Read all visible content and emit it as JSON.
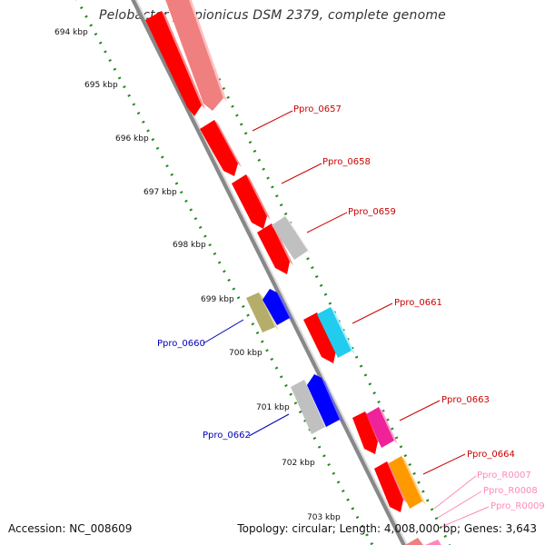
{
  "title": "Pelobacter propionicus DSM 2379, complete genome",
  "accession_text": "Accession: NC_008609",
  "summary_text": "Topology: circular; Length: 4,008,000 bp; Genes: 3,643",
  "ruler_labels": [
    "694 kbp",
    "695 kbp",
    "696 kbp",
    "697 kbp",
    "698 kbp",
    "699 kbp",
    "700 kbp",
    "701 kbp",
    "702 kbp",
    "703 kbp"
  ],
  "gene_labels": [
    {
      "text": "Ppro_0657",
      "color": "#cc0000"
    },
    {
      "text": "Ppro_0658",
      "color": "#cc0000"
    },
    {
      "text": "Ppro_0659",
      "color": "#cc0000"
    },
    {
      "text": "Ppro_0660",
      "color": "#0000bb"
    },
    {
      "text": "Ppro_0661",
      "color": "#cc0000"
    },
    {
      "text": "Ppro_0662",
      "color": "#0000bb"
    },
    {
      "text": "Ppro_0663",
      "color": "#cc0000"
    },
    {
      "text": "Ppro_0664",
      "color": "#cc0000"
    },
    {
      "text": "Ppro_R0007",
      "color": "#ff88bb"
    },
    {
      "text": "Ppro_R0008",
      "color": "#ff88bb"
    },
    {
      "text": "Ppro_R0009",
      "color": "#ff88bb"
    }
  ],
  "colors": {
    "forward_cds": "#ff0000",
    "reverse_cds": "#0000ff",
    "pale_feature": "#f08080",
    "gray_feature": "#c0c0c0",
    "olive_feature": "#b5ad6a",
    "cyan_feature": "#22ccee",
    "magenta_feature": "#ee2299",
    "orange_feature": "#ff9900",
    "backbone": "#888888",
    "ruler_dots": "#228822"
  }
}
